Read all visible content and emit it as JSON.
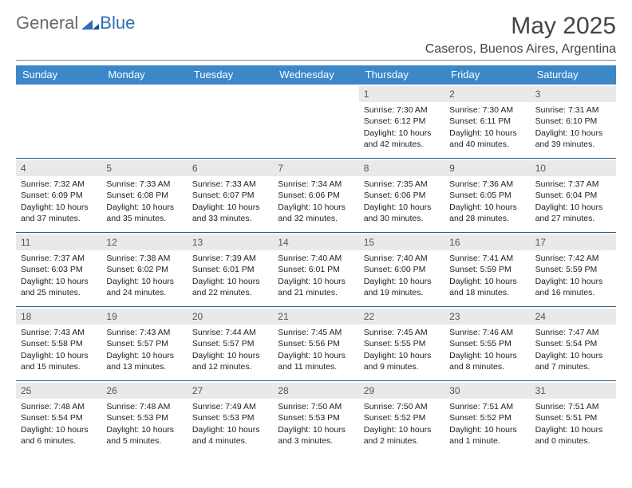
{
  "logo": {
    "word1": "General",
    "word2": "Blue"
  },
  "title": "May 2025",
  "location": "Caseros, Buenos Aires, Argentina",
  "colors": {
    "header_bg": "#3b87c8",
    "header_text": "#ffffff",
    "daynum_bg": "#e9e9e9",
    "row_sep": "#2e5f8f",
    "logo_gray": "#6a6a6a",
    "logo_blue": "#2e6fb5"
  },
  "weekdays": [
    "Sunday",
    "Monday",
    "Tuesday",
    "Wednesday",
    "Thursday",
    "Friday",
    "Saturday"
  ],
  "leading_blanks": 4,
  "days": [
    {
      "n": "1",
      "sunrise": "Sunrise: 7:30 AM",
      "sunset": "Sunset: 6:12 PM",
      "daylight": "Daylight: 10 hours and 42 minutes."
    },
    {
      "n": "2",
      "sunrise": "Sunrise: 7:30 AM",
      "sunset": "Sunset: 6:11 PM",
      "daylight": "Daylight: 10 hours and 40 minutes."
    },
    {
      "n": "3",
      "sunrise": "Sunrise: 7:31 AM",
      "sunset": "Sunset: 6:10 PM",
      "daylight": "Daylight: 10 hours and 39 minutes."
    },
    {
      "n": "4",
      "sunrise": "Sunrise: 7:32 AM",
      "sunset": "Sunset: 6:09 PM",
      "daylight": "Daylight: 10 hours and 37 minutes."
    },
    {
      "n": "5",
      "sunrise": "Sunrise: 7:33 AM",
      "sunset": "Sunset: 6:08 PM",
      "daylight": "Daylight: 10 hours and 35 minutes."
    },
    {
      "n": "6",
      "sunrise": "Sunrise: 7:33 AM",
      "sunset": "Sunset: 6:07 PM",
      "daylight": "Daylight: 10 hours and 33 minutes."
    },
    {
      "n": "7",
      "sunrise": "Sunrise: 7:34 AM",
      "sunset": "Sunset: 6:06 PM",
      "daylight": "Daylight: 10 hours and 32 minutes."
    },
    {
      "n": "8",
      "sunrise": "Sunrise: 7:35 AM",
      "sunset": "Sunset: 6:06 PM",
      "daylight": "Daylight: 10 hours and 30 minutes."
    },
    {
      "n": "9",
      "sunrise": "Sunrise: 7:36 AM",
      "sunset": "Sunset: 6:05 PM",
      "daylight": "Daylight: 10 hours and 28 minutes."
    },
    {
      "n": "10",
      "sunrise": "Sunrise: 7:37 AM",
      "sunset": "Sunset: 6:04 PM",
      "daylight": "Daylight: 10 hours and 27 minutes."
    },
    {
      "n": "11",
      "sunrise": "Sunrise: 7:37 AM",
      "sunset": "Sunset: 6:03 PM",
      "daylight": "Daylight: 10 hours and 25 minutes."
    },
    {
      "n": "12",
      "sunrise": "Sunrise: 7:38 AM",
      "sunset": "Sunset: 6:02 PM",
      "daylight": "Daylight: 10 hours and 24 minutes."
    },
    {
      "n": "13",
      "sunrise": "Sunrise: 7:39 AM",
      "sunset": "Sunset: 6:01 PM",
      "daylight": "Daylight: 10 hours and 22 minutes."
    },
    {
      "n": "14",
      "sunrise": "Sunrise: 7:40 AM",
      "sunset": "Sunset: 6:01 PM",
      "daylight": "Daylight: 10 hours and 21 minutes."
    },
    {
      "n": "15",
      "sunrise": "Sunrise: 7:40 AM",
      "sunset": "Sunset: 6:00 PM",
      "daylight": "Daylight: 10 hours and 19 minutes."
    },
    {
      "n": "16",
      "sunrise": "Sunrise: 7:41 AM",
      "sunset": "Sunset: 5:59 PM",
      "daylight": "Daylight: 10 hours and 18 minutes."
    },
    {
      "n": "17",
      "sunrise": "Sunrise: 7:42 AM",
      "sunset": "Sunset: 5:59 PM",
      "daylight": "Daylight: 10 hours and 16 minutes."
    },
    {
      "n": "18",
      "sunrise": "Sunrise: 7:43 AM",
      "sunset": "Sunset: 5:58 PM",
      "daylight": "Daylight: 10 hours and 15 minutes."
    },
    {
      "n": "19",
      "sunrise": "Sunrise: 7:43 AM",
      "sunset": "Sunset: 5:57 PM",
      "daylight": "Daylight: 10 hours and 13 minutes."
    },
    {
      "n": "20",
      "sunrise": "Sunrise: 7:44 AM",
      "sunset": "Sunset: 5:57 PM",
      "daylight": "Daylight: 10 hours and 12 minutes."
    },
    {
      "n": "21",
      "sunrise": "Sunrise: 7:45 AM",
      "sunset": "Sunset: 5:56 PM",
      "daylight": "Daylight: 10 hours and 11 minutes."
    },
    {
      "n": "22",
      "sunrise": "Sunrise: 7:45 AM",
      "sunset": "Sunset: 5:55 PM",
      "daylight": "Daylight: 10 hours and 9 minutes."
    },
    {
      "n": "23",
      "sunrise": "Sunrise: 7:46 AM",
      "sunset": "Sunset: 5:55 PM",
      "daylight": "Daylight: 10 hours and 8 minutes."
    },
    {
      "n": "24",
      "sunrise": "Sunrise: 7:47 AM",
      "sunset": "Sunset: 5:54 PM",
      "daylight": "Daylight: 10 hours and 7 minutes."
    },
    {
      "n": "25",
      "sunrise": "Sunrise: 7:48 AM",
      "sunset": "Sunset: 5:54 PM",
      "daylight": "Daylight: 10 hours and 6 minutes."
    },
    {
      "n": "26",
      "sunrise": "Sunrise: 7:48 AM",
      "sunset": "Sunset: 5:53 PM",
      "daylight": "Daylight: 10 hours and 5 minutes."
    },
    {
      "n": "27",
      "sunrise": "Sunrise: 7:49 AM",
      "sunset": "Sunset: 5:53 PM",
      "daylight": "Daylight: 10 hours and 4 minutes."
    },
    {
      "n": "28",
      "sunrise": "Sunrise: 7:50 AM",
      "sunset": "Sunset: 5:53 PM",
      "daylight": "Daylight: 10 hours and 3 minutes."
    },
    {
      "n": "29",
      "sunrise": "Sunrise: 7:50 AM",
      "sunset": "Sunset: 5:52 PM",
      "daylight": "Daylight: 10 hours and 2 minutes."
    },
    {
      "n": "30",
      "sunrise": "Sunrise: 7:51 AM",
      "sunset": "Sunset: 5:52 PM",
      "daylight": "Daylight: 10 hours and 1 minute."
    },
    {
      "n": "31",
      "sunrise": "Sunrise: 7:51 AM",
      "sunset": "Sunset: 5:51 PM",
      "daylight": "Daylight: 10 hours and 0 minutes."
    }
  ]
}
